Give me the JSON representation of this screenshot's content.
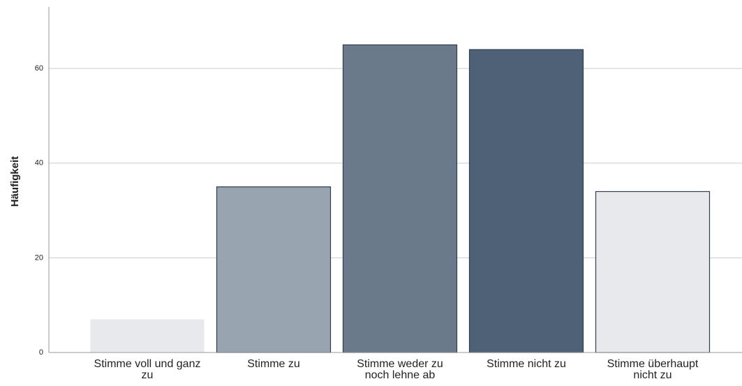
{
  "chart_data": {
    "type": "bar",
    "y_label": "Häufigkeit",
    "categories": [
      "Stimme voll und ganz zu",
      "Stimme zu",
      "Stimme weder zu noch lehne ab",
      "Stimme nicht zu",
      "Stimme überhaupt nicht zu"
    ],
    "values": [
      7,
      35,
      65,
      64,
      34
    ],
    "colors": [
      "#e8e9ed",
      "#98a4b0",
      "#6a7a8a",
      "#4e6176",
      "#e8e9ed"
    ],
    "ylim": [
      0,
      73
    ],
    "yticks": [
      0,
      20,
      40,
      60
    ],
    "grid": true
  }
}
